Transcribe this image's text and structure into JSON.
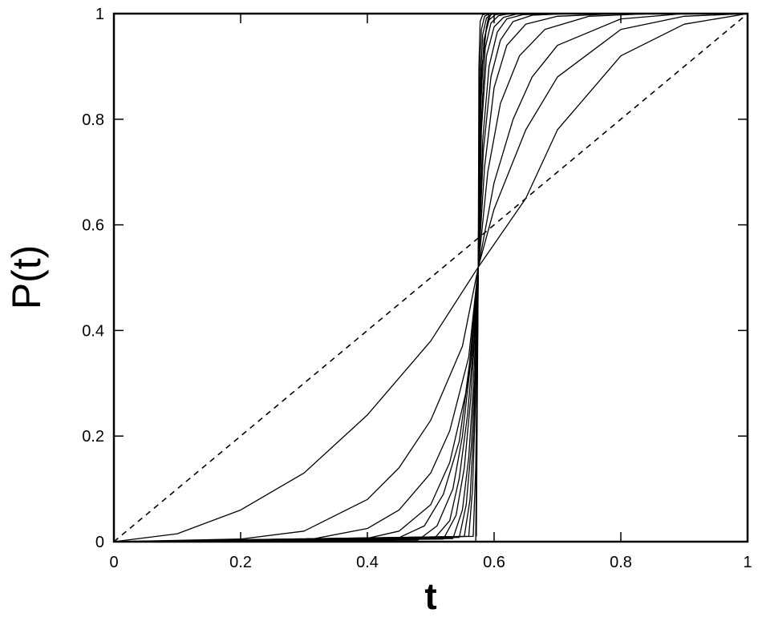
{
  "chart_data": {
    "type": "line",
    "title": "",
    "xlabel": "t",
    "ylabel": "P(t)",
    "xlim": [
      0,
      1
    ],
    "ylim": [
      0,
      1
    ],
    "xticks": [
      "0",
      "0.2",
      "0.4",
      "0.6",
      "0.8",
      "1"
    ],
    "yticks": [
      "0",
      "0.2",
      "0.4",
      "0.6",
      "0.8",
      "1"
    ],
    "grid": false,
    "legend": "none",
    "series": [
      {
        "style": "dashed",
        "x": [
          0,
          1
        ],
        "y": [
          0,
          1
        ]
      },
      {
        "style": "solid",
        "x": [
          0,
          0.1,
          0.2,
          0.3,
          0.4,
          0.5,
          0.575,
          0.65,
          0.7,
          0.8,
          0.9,
          1
        ],
        "y": [
          0,
          0.015,
          0.06,
          0.13,
          0.24,
          0.38,
          0.52,
          0.65,
          0.78,
          0.92,
          0.98,
          1
        ]
      },
      {
        "style": "solid",
        "x": [
          0,
          0.2,
          0.3,
          0.4,
          0.45,
          0.5,
          0.55,
          0.575,
          0.6,
          0.65,
          0.7,
          0.8,
          0.9,
          1
        ],
        "y": [
          0,
          0.005,
          0.02,
          0.08,
          0.14,
          0.23,
          0.37,
          0.52,
          0.63,
          0.78,
          0.88,
          0.97,
          0.995,
          1
        ]
      },
      {
        "style": "solid",
        "x": [
          0,
          0.3,
          0.4,
          0.45,
          0.5,
          0.53,
          0.56,
          0.575,
          0.6,
          0.63,
          0.66,
          0.7,
          0.8,
          0.9,
          1
        ],
        "y": [
          0,
          0.002,
          0.025,
          0.06,
          0.13,
          0.21,
          0.35,
          0.52,
          0.68,
          0.8,
          0.88,
          0.94,
          0.99,
          1,
          1
        ]
      },
      {
        "style": "solid",
        "x": [
          0,
          0.38,
          0.45,
          0.5,
          0.53,
          0.555,
          0.57,
          0.575,
          0.59,
          0.61,
          0.64,
          0.68,
          0.75,
          0.85,
          1
        ],
        "y": [
          0,
          0.001,
          0.02,
          0.07,
          0.15,
          0.28,
          0.42,
          0.52,
          0.7,
          0.83,
          0.92,
          0.97,
          0.995,
          1,
          1
        ]
      },
      {
        "style": "solid",
        "x": [
          0,
          0.44,
          0.49,
          0.52,
          0.545,
          0.56,
          0.575,
          0.585,
          0.6,
          0.62,
          0.65,
          0.7,
          0.8,
          1
        ],
        "y": [
          0,
          0.002,
          0.03,
          0.09,
          0.19,
          0.32,
          0.52,
          0.71,
          0.86,
          0.94,
          0.98,
          0.995,
          1,
          1
        ]
      },
      {
        "style": "solid",
        "x": [
          0,
          0.48,
          0.51,
          0.535,
          0.55,
          0.565,
          0.575,
          0.583,
          0.595,
          0.61,
          0.63,
          0.66,
          0.72,
          1
        ],
        "y": [
          0,
          0.003,
          0.03,
          0.1,
          0.2,
          0.36,
          0.52,
          0.74,
          0.88,
          0.95,
          0.985,
          0.997,
          1,
          1
        ]
      },
      {
        "style": "solid",
        "x": [
          0,
          0.505,
          0.53,
          0.545,
          0.558,
          0.568,
          0.575,
          0.582,
          0.592,
          0.605,
          0.62,
          0.645,
          0.7,
          1
        ],
        "y": [
          0,
          0.005,
          0.04,
          0.12,
          0.24,
          0.38,
          0.52,
          0.76,
          0.9,
          0.965,
          0.99,
          0.998,
          1,
          1
        ]
      },
      {
        "style": "solid",
        "x": [
          0,
          0.52,
          0.54,
          0.553,
          0.563,
          0.57,
          0.575,
          0.58,
          0.588,
          0.6,
          0.615,
          0.635,
          0.68,
          1
        ],
        "y": [
          0,
          0.005,
          0.05,
          0.14,
          0.27,
          0.4,
          0.52,
          0.78,
          0.92,
          0.975,
          0.993,
          0.999,
          1,
          1
        ]
      },
      {
        "style": "solid",
        "x": [
          0,
          0.535,
          0.55,
          0.56,
          0.567,
          0.572,
          0.575,
          0.58,
          0.586,
          0.595,
          0.607,
          0.625,
          0.66,
          1
        ],
        "y": [
          0,
          0.006,
          0.06,
          0.16,
          0.29,
          0.42,
          0.52,
          0.8,
          0.935,
          0.982,
          0.996,
          1,
          1,
          1
        ]
      },
      {
        "style": "solid",
        "x": [
          0,
          0.545,
          0.556,
          0.564,
          0.57,
          0.573,
          0.575,
          0.579,
          0.584,
          0.592,
          0.602,
          0.616,
          0.645,
          1
        ],
        "y": [
          0,
          0.008,
          0.07,
          0.18,
          0.32,
          0.44,
          0.52,
          0.83,
          0.95,
          0.988,
          0.998,
          1,
          1,
          1
        ]
      },
      {
        "style": "solid",
        "x": [
          0,
          0.553,
          0.562,
          0.568,
          0.572,
          0.575,
          0.578,
          0.582,
          0.588,
          0.597,
          0.61,
          0.63,
          1
        ],
        "y": [
          0,
          0.01,
          0.08,
          0.22,
          0.38,
          0.52,
          0.86,
          0.96,
          0.992,
          0.999,
          1,
          1,
          1
        ]
      },
      {
        "style": "solid",
        "x": [
          0,
          0.56,
          0.566,
          0.571,
          0.574,
          0.575,
          0.577,
          0.58,
          0.585,
          0.593,
          0.605,
          1
        ],
        "y": [
          0,
          0.01,
          0.1,
          0.28,
          0.44,
          0.52,
          0.88,
          0.97,
          0.995,
          1,
          1,
          1
        ]
      },
      {
        "style": "solid",
        "x": [
          0,
          0.567,
          0.571,
          0.574,
          0.575,
          0.576,
          0.578,
          0.582,
          0.59,
          0.6,
          1
        ],
        "y": [
          0,
          0.01,
          0.14,
          0.4,
          0.52,
          0.9,
          0.985,
          0.998,
          1,
          1,
          1
        ]
      },
      {
        "style": "solid",
        "x": [
          0.571,
          0.575,
          0.577,
          0.58,
          0.585,
          0.588,
          0.595
        ],
        "y": [
          0,
          0.52,
          0.79,
          0.89,
          0.94,
          0.975,
          1
        ]
      },
      {
        "style": "solid",
        "x": [
          0.572,
          0.575,
          0.578,
          0.582,
          0.586,
          0.592
        ],
        "y": [
          0.01,
          0.52,
          0.8,
          0.9,
          0.96,
          1
        ]
      }
    ]
  }
}
